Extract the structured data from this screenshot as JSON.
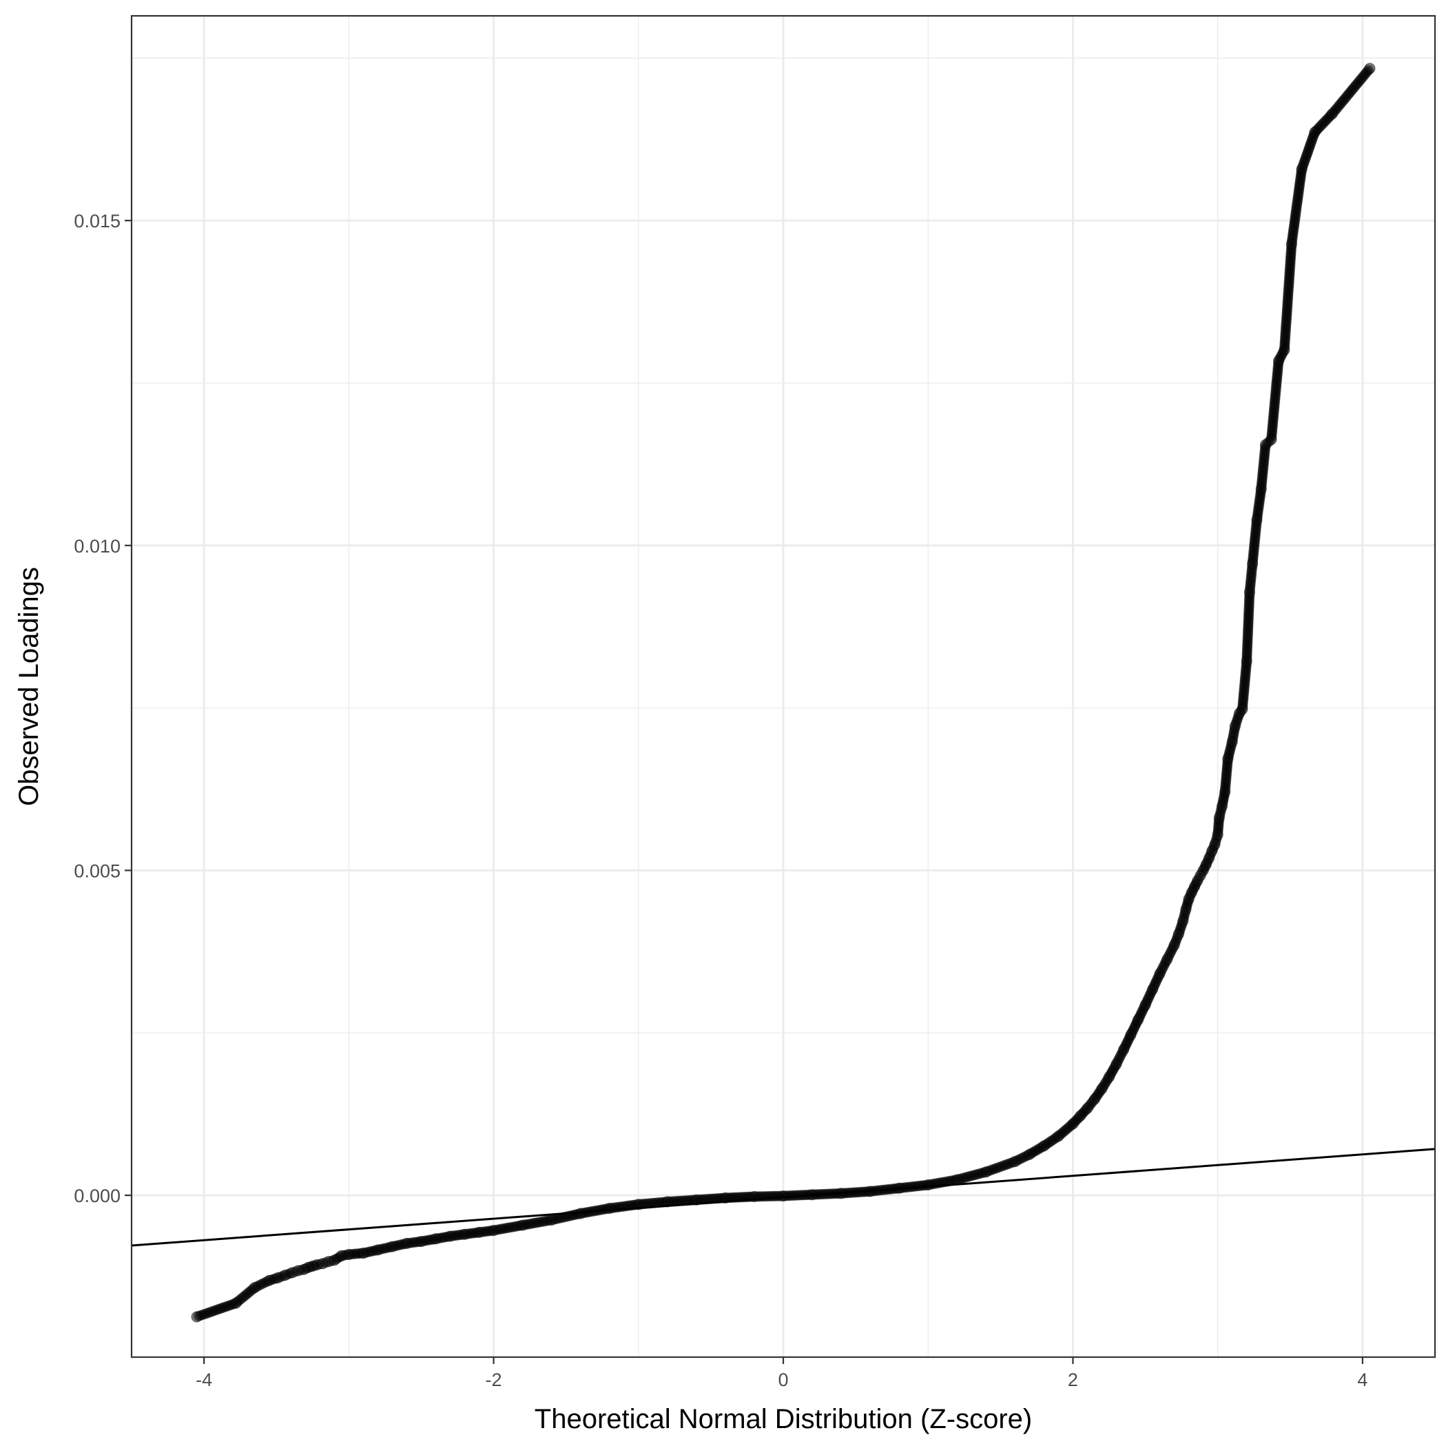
{
  "chart_data": {
    "type": "scatter",
    "title": "",
    "xlabel": "Theoretical Normal Distribution (Z-score)",
    "ylabel": "Observed Loadings",
    "xlim": [
      -4.5,
      4.5
    ],
    "ylim": [
      -0.00249,
      0.01815
    ],
    "x_ticks": [
      -4,
      -2,
      0,
      2,
      4
    ],
    "x_tick_labels": [
      "-4",
      "-2",
      "0",
      "2",
      "4"
    ],
    "y_ticks": [
      0.0,
      0.005,
      0.01,
      0.015
    ],
    "y_tick_labels": [
      "0.000",
      "0.005",
      "0.010",
      "0.015"
    ],
    "x_minor_ticks": [
      -3,
      -1,
      1,
      3
    ],
    "y_minor_ticks": [
      -0.0025,
      0.0025,
      0.0075,
      0.0125,
      0.0175
    ],
    "grid": true,
    "legend": "none",
    "reference_line": {
      "intercept": -3e-05,
      "slope": 0.000165
    },
    "colors": {
      "points": "#000000",
      "point_opacity": 0.5,
      "line": "#000000",
      "grid": "#ebebeb",
      "panel_border": "#333333"
    },
    "series": [
      {
        "x": [
          -4.05,
          -3.78,
          -3.65,
          -3.55,
          -3.49,
          -3.44,
          -3.39,
          -3.35,
          -3.31,
          -3.28,
          -3.25,
          -3.22,
          -3.18,
          -3.14,
          -3.1,
          -3.05,
          -3.0,
          -2.9,
          -2.8,
          -2.7,
          -2.6,
          -2.5,
          -2.4,
          -2.3,
          -2.2,
          -2.1,
          -2.0,
          -1.8,
          -1.6,
          -1.4,
          -1.2,
          -1.0,
          -0.8,
          -0.6,
          -0.4,
          -0.2,
          0.0,
          0.2,
          0.4,
          0.6,
          0.8,
          1.0,
          1.2,
          1.4,
          1.6,
          1.7,
          1.8,
          1.9,
          2.0,
          2.05,
          2.1,
          2.15,
          2.2,
          2.25,
          2.3,
          2.35,
          2.4,
          2.45,
          2.5,
          2.55,
          2.6,
          2.65,
          2.7,
          2.73,
          2.76,
          2.78,
          2.8,
          2.82,
          2.84,
          2.86,
          2.88,
          2.9,
          2.92,
          2.94,
          2.96,
          2.98,
          3.0,
          3.01,
          3.03,
          3.05,
          3.07,
          3.1,
          3.12,
          3.15,
          3.17,
          3.2,
          3.22,
          3.24,
          3.27,
          3.3,
          3.33,
          3.37,
          3.42,
          3.46,
          3.51,
          3.58,
          3.67,
          3.79,
          4.05
        ],
        "y": [
          -0.00187,
          -0.00166,
          -0.00142,
          -0.00131,
          -0.00127,
          -0.00123,
          -0.00119,
          -0.00116,
          -0.00114,
          -0.00111,
          -0.00109,
          -0.00107,
          -0.00105,
          -0.00102,
          -0.001,
          -0.00093,
          -0.00091,
          -0.00089,
          -0.00084,
          -0.00079,
          -0.00074,
          -0.00071,
          -0.00067,
          -0.00063,
          -0.0006,
          -0.00057,
          -0.00054,
          -0.00046,
          -0.00038,
          -0.00028,
          -0.0002,
          -0.00014,
          -0.0001,
          -7e-05,
          -4e-05,
          -2e-05,
          -1e-05,
          1e-05,
          3e-05,
          6e-05,
          0.00011,
          0.00016,
          0.00024,
          0.00036,
          0.00052,
          0.00063,
          0.00076,
          0.00091,
          0.0011,
          0.00122,
          0.00134,
          0.00148,
          0.00164,
          0.00182,
          0.00202,
          0.00224,
          0.00247,
          0.0027,
          0.00293,
          0.00317,
          0.00341,
          0.00363,
          0.00385,
          0.00402,
          0.00422,
          0.0044,
          0.00456,
          0.00466,
          0.00475,
          0.00484,
          0.00492,
          0.005,
          0.00509,
          0.00519,
          0.0053,
          0.0054,
          0.00555,
          0.00581,
          0.00599,
          0.00621,
          0.00672,
          0.00698,
          0.00722,
          0.00742,
          0.00748,
          0.00822,
          0.00928,
          0.00972,
          0.01039,
          0.01087,
          0.01155,
          0.01163,
          0.01284,
          0.01301,
          0.01464,
          0.01579,
          0.01636,
          0.01664,
          0.01734
        ]
      }
    ]
  }
}
